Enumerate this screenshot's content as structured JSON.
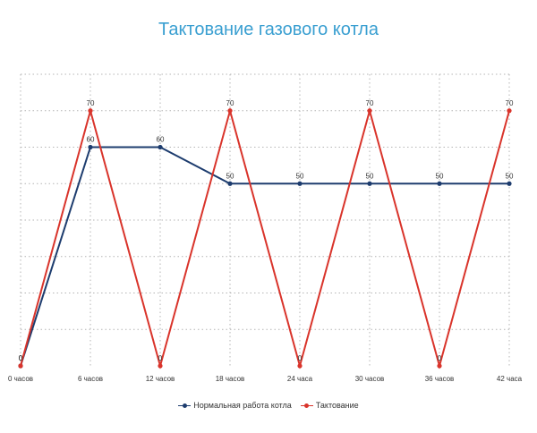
{
  "chart_data": {
    "type": "line",
    "title": "Тактование газового котла",
    "categories": [
      "0 часов",
      "6 часов",
      "12 часов",
      "18 часов",
      "24 часа",
      "30 часов",
      "36 часов",
      "42 часа"
    ],
    "ylim": [
      0,
      80
    ],
    "grid": true,
    "legend_position": "bottom",
    "series": [
      {
        "name": "Нормальная работа котла",
        "color": "#1d3c6e",
        "values": [
          0,
          60,
          60,
          50,
          50,
          50,
          50,
          50
        ]
      },
      {
        "name": "Тактование",
        "color": "#d9342b",
        "values": [
          0,
          70,
          0,
          70,
          0,
          70,
          0,
          70
        ]
      }
    ]
  },
  "colors": {
    "title": "#3a9fd1",
    "grid": "#b4b4b4"
  }
}
